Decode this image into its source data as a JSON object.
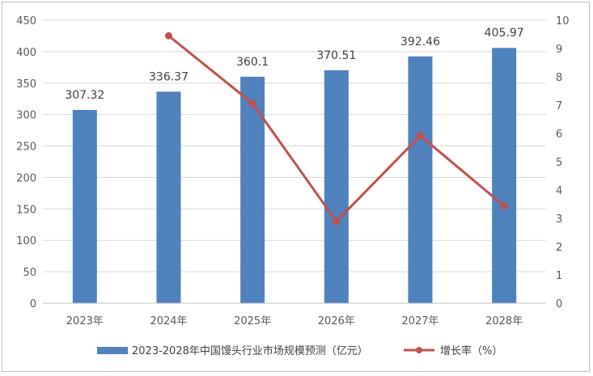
{
  "chart_data": {
    "type": "bar+line",
    "categories": [
      "2023年",
      "2024年",
      "2025年",
      "2026年",
      "2027年",
      "2028年"
    ],
    "series": [
      {
        "name": "2023-2028年中国馒头行业市场规模预测（亿元）",
        "type": "bar",
        "axis": "left",
        "values": [
          307.32,
          336.37,
          360.1,
          370.51,
          392.46,
          405.97
        ],
        "value_labels": [
          "307.32",
          "336.37",
          "360.1",
          "370.51",
          "392.46",
          "405.97"
        ],
        "color": "#4f81bd"
      },
      {
        "name": "增长率（%）",
        "type": "line",
        "axis": "right",
        "values": [
          null,
          9.45,
          7.06,
          2.89,
          5.92,
          3.44
        ],
        "color": "#c0504d"
      }
    ],
    "y_left": {
      "min": 0,
      "max": 450,
      "step": 50,
      "ticks": [
        "0",
        "50",
        "100",
        "150",
        "200",
        "250",
        "300",
        "350",
        "400",
        "450"
      ]
    },
    "y_right": {
      "min": 0,
      "max": 10,
      "step": 1,
      "ticks": [
        "0",
        "1",
        "2",
        "3",
        "4",
        "5",
        "6",
        "7",
        "8",
        "9",
        "10"
      ]
    },
    "grid": true,
    "legend_position": "bottom"
  }
}
